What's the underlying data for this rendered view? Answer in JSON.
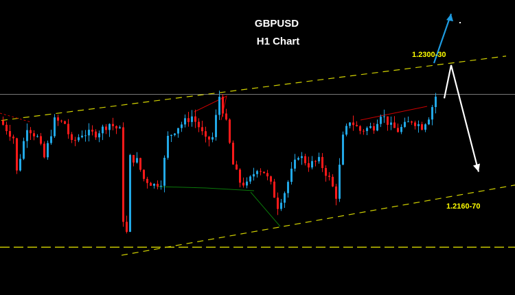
{
  "chart_data": {
    "type": "candlestick",
    "title": "GBPUSD",
    "subtitle": "H1 Chart",
    "colors": {
      "up": "#22a8e6",
      "down": "#ff1a1a",
      "background": "#000000",
      "trendline": "#d4d400",
      "resistance_line": "#7a7a7a"
    },
    "grid": false,
    "close_path": [
      [
        0,
        1.2243
      ],
      [
        4,
        1.2226
      ],
      [
        5,
        1.2192
      ],
      [
        8,
        1.2237
      ],
      [
        11,
        1.2226
      ],
      [
        13,
        1.2206
      ],
      [
        16,
        1.2243
      ],
      [
        19,
        1.224
      ],
      [
        21,
        1.222
      ],
      [
        24,
        1.223
      ],
      [
        28,
        1.223
      ],
      [
        32,
        1.224
      ],
      [
        35,
        1.2233
      ],
      [
        36,
        1.2145
      ],
      [
        37,
        1.2131
      ],
      [
        38,
        1.2206
      ],
      [
        40,
        1.2203
      ],
      [
        42,
        1.2185
      ],
      [
        45,
        1.2179
      ],
      [
        47,
        1.2182
      ],
      [
        49,
        1.2226
      ],
      [
        52,
        1.2237
      ],
      [
        56,
        1.2247
      ],
      [
        58,
        1.2237
      ],
      [
        60,
        1.2223
      ],
      [
        62,
        1.2226
      ],
      [
        64,
        1.2267
      ],
      [
        66,
        1.224
      ],
      [
        68,
        1.2199
      ],
      [
        70,
        1.2182
      ],
      [
        72,
        1.2179
      ],
      [
        75,
        1.2196
      ],
      [
        77,
        1.2192
      ],
      [
        79,
        1.2179
      ],
      [
        81,
        1.2158
      ],
      [
        83,
        1.2172
      ],
      [
        85,
        1.2192
      ],
      [
        87,
        1.2209
      ],
      [
        90,
        1.2199
      ],
      [
        93,
        1.2203
      ],
      [
        96,
        1.2185
      ],
      [
        98,
        1.2168
      ],
      [
        100,
        1.2226
      ],
      [
        102,
        1.2243
      ],
      [
        105,
        1.2233
      ],
      [
        109,
        1.2237
      ],
      [
        111,
        1.225
      ],
      [
        114,
        1.2237
      ],
      [
        116,
        1.2233
      ],
      [
        120,
        1.2243
      ],
      [
        123,
        1.2237
      ],
      [
        125,
        1.2247
      ],
      [
        127,
        1.2267
      ]
    ],
    "horizontal_level": 1.2269,
    "support_level": 1.2117,
    "upper_channel": [
      [
        0,
        1.2243
      ],
      [
        147,
        1.2307
      ]
    ],
    "lower_channel": [
      [
        35,
        1.2109
      ],
      [
        150,
        1.2179
      ]
    ],
    "annotations": {
      "upper_target": "1.2300-30",
      "lower_target": "1.2160-70"
    },
    "arrows": {
      "bullish": {
        "color": "#1e9be0",
        "from": [
          126,
          1.23
        ],
        "to": [
          131,
          1.2349
        ]
      },
      "bearish": {
        "color": "#ffffff",
        "path": [
          [
            129,
            1.2265
          ],
          [
            131,
            1.2298
          ],
          [
            139,
            1.2192
          ]
        ]
      }
    }
  }
}
